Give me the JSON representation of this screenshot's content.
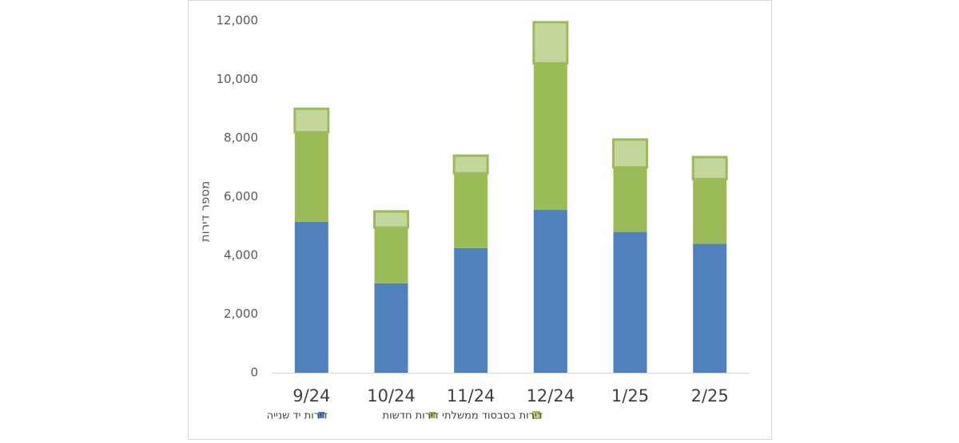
{
  "chart_data": {
    "type": "stacked_bar",
    "y_label": "מספר דירות",
    "categories": [
      "9/24",
      "10/24",
      "11/24",
      "12/24",
      "1/25",
      "2/25"
    ],
    "series": [
      {
        "name": "דירות יד שנייה",
        "color": "#4f81bd",
        "values": [
          5150,
          3050,
          4250,
          5550,
          4800,
          4400
        ]
      },
      {
        "name": "דירות חדשות",
        "color": "#9bbb59",
        "values": [
          3050,
          1900,
          2550,
          5000,
          2200,
          2200
        ]
      },
      {
        "name": "דירות בסבסוד ממשלתי",
        "color": "#c3d69b",
        "values": [
          800,
          550,
          600,
          1400,
          950,
          750
        ]
      }
    ],
    "ylim": [
      0,
      12000
    ],
    "yticks": [
      {
        "value": 0,
        "label": "0"
      },
      {
        "value": 2000,
        "label": "2,000"
      },
      {
        "value": 4000,
        "label": "4,000"
      },
      {
        "value": 6000,
        "label": "6,000"
      },
      {
        "value": 8000,
        "label": "8,000"
      },
      {
        "value": 10000,
        "label": "10,000"
      },
      {
        "value": 12000,
        "label": "12,000"
      }
    ],
    "grid": false,
    "legend": "bottom"
  }
}
